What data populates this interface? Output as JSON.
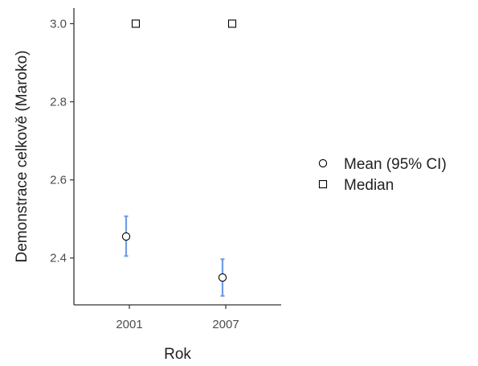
{
  "chart_data": {
    "type": "scatter",
    "title": "",
    "xlabel": "Rok",
    "ylabel": "Demonstrace celkově (Maroko)",
    "categories": [
      "2001",
      "2007"
    ],
    "ylim": [
      2.28,
      3.04
    ],
    "yticks": [
      2.4,
      2.6,
      2.8,
      3.0
    ],
    "ytick_labels": [
      "2.4",
      "2.6",
      "2.8",
      "3.0"
    ],
    "grid": false,
    "legend_position": "right",
    "series": [
      {
        "name": "Mean (95% CI)",
        "marker": "circle",
        "values": [
          2.455,
          2.35
        ],
        "ci_low": [
          2.405,
          2.303
        ],
        "ci_high": [
          2.507,
          2.397
        ]
      },
      {
        "name": "Median",
        "marker": "square",
        "values": [
          3.0,
          3.0
        ]
      }
    ],
    "colors": {
      "errorbar": "#6f9ce8",
      "marker_stroke": "#000000",
      "marker_fill": "#ffffff",
      "axis": "#333333",
      "text": "#4d4d4d"
    }
  }
}
